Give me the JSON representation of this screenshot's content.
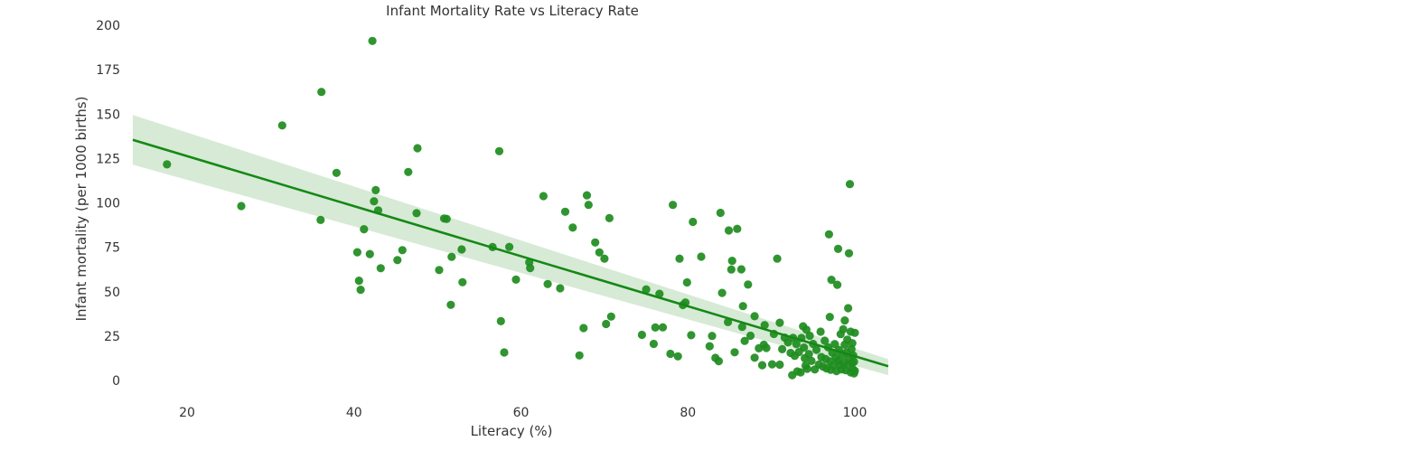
{
  "chart_data": {
    "type": "scatter",
    "title": "Infant Mortality Rate vs Literacy Rate",
    "xlabel": "Literacy (%)",
    "ylabel": "Infant mortality (per 1000 births)",
    "xlim": [
      13.5,
      104
    ],
    "ylim": [
      -9,
      201
    ],
    "xticks": [
      20,
      40,
      60,
      80,
      100
    ],
    "yticks": [
      0,
      25,
      50,
      75,
      100,
      125,
      150,
      175,
      200
    ],
    "grid": false,
    "legend": "none",
    "colors": {
      "points": "#1e8c1e",
      "line": "#158815",
      "band": "#cfe6cf"
    },
    "regression": {
      "x": [
        13.5,
        104
      ],
      "y": [
        135.5,
        8
      ],
      "ci_upper": [
        149.5,
        12
      ],
      "ci_lower": [
        121.5,
        3
      ]
    },
    "points": [
      [
        17.6,
        121.7
      ],
      [
        26.5,
        98.2
      ],
      [
        31.4,
        143.6
      ],
      [
        36.0,
        90.4
      ],
      [
        36.1,
        162.5
      ],
      [
        37.9,
        116.9
      ],
      [
        40.4,
        72.2
      ],
      [
        40.6,
        56.2
      ],
      [
        40.8,
        51.1
      ],
      [
        41.2,
        85.2
      ],
      [
        41.9,
        71.2
      ],
      [
        42.2,
        191.2
      ],
      [
        42.4,
        100.9
      ],
      [
        42.6,
        107.2
      ],
      [
        42.9,
        95.8
      ],
      [
        43.2,
        63.2
      ],
      [
        45.2,
        67.8
      ],
      [
        45.8,
        73.4
      ],
      [
        46.5,
        117.4
      ],
      [
        47.5,
        94.2
      ],
      [
        47.6,
        130.8
      ],
      [
        50.2,
        62.2
      ],
      [
        50.8,
        91.2
      ],
      [
        51.1,
        91.0
      ],
      [
        51.6,
        42.6
      ],
      [
        51.7,
        69.6
      ],
      [
        52.9,
        73.8
      ],
      [
        53.0,
        55.3
      ],
      [
        56.6,
        75.1
      ],
      [
        57.4,
        129.1
      ],
      [
        57.6,
        33.4
      ],
      [
        58.0,
        15.8
      ],
      [
        58.6,
        75.2
      ],
      [
        59.4,
        56.8
      ],
      [
        61.0,
        66.5
      ],
      [
        61.1,
        63.3
      ],
      [
        62.7,
        103.8
      ],
      [
        63.2,
        54.3
      ],
      [
        64.7,
        51.9
      ],
      [
        65.3,
        95.0
      ],
      [
        66.2,
        86.1
      ],
      [
        67.0,
        14.1
      ],
      [
        67.5,
        29.5
      ],
      [
        67.9,
        104.3
      ],
      [
        68.1,
        98.9
      ],
      [
        68.9,
        77.7
      ],
      [
        69.4,
        72.1
      ],
      [
        70.0,
        68.6
      ],
      [
        70.2,
        31.8
      ],
      [
        70.6,
        91.4
      ],
      [
        70.8,
        36.0
      ],
      [
        74.5,
        25.7
      ],
      [
        75.0,
        51.3
      ],
      [
        75.9,
        20.6
      ],
      [
        76.1,
        29.8
      ],
      [
        76.6,
        48.8
      ],
      [
        77.0,
        29.9
      ],
      [
        77.9,
        15.0
      ],
      [
        78.2,
        98.9
      ],
      [
        78.8,
        13.6
      ],
      [
        79.0,
        68.6
      ],
      [
        79.4,
        42.5
      ],
      [
        79.7,
        43.9
      ],
      [
        79.9,
        55.2
      ],
      [
        80.4,
        25.5
      ],
      [
        80.6,
        89.3
      ],
      [
        81.6,
        69.7
      ],
      [
        82.6,
        19.3
      ],
      [
        82.9,
        25.1
      ],
      [
        83.3,
        12.7
      ],
      [
        83.7,
        10.9
      ],
      [
        83.9,
        94.4
      ],
      [
        84.1,
        49.3
      ],
      [
        84.8,
        32.9
      ],
      [
        84.9,
        84.5
      ],
      [
        85.2,
        62.5
      ],
      [
        85.3,
        67.4
      ],
      [
        85.6,
        15.9
      ],
      [
        85.9,
        85.4
      ],
      [
        86.4,
        62.6
      ],
      [
        86.5,
        30.2
      ],
      [
        86.6,
        41.9
      ],
      [
        86.8,
        22.3
      ],
      [
        87.2,
        54.0
      ],
      [
        87.5,
        25.2
      ],
      [
        88.0,
        36.2
      ],
      [
        88.0,
        12.8
      ],
      [
        88.5,
        18.1
      ],
      [
        88.9,
        8.6
      ],
      [
        89.1,
        20.1
      ],
      [
        89.2,
        31.2
      ],
      [
        89.4,
        18.3
      ],
      [
        90.1,
        9.1
      ],
      [
        90.3,
        26.2
      ],
      [
        90.7,
        68.6
      ],
      [
        91.0,
        32.5
      ],
      [
        91.0,
        8.9
      ],
      [
        91.3,
        17.6
      ],
      [
        91.6,
        24.1
      ],
      [
        92.0,
        21.5
      ],
      [
        92.3,
        15.5
      ],
      [
        92.5,
        3.0
      ],
      [
        92.6,
        24.0
      ],
      [
        92.8,
        13.9
      ],
      [
        93.0,
        20.5
      ],
      [
        93.1,
        5.1
      ],
      [
        93.3,
        16.0
      ],
      [
        93.5,
        4.6
      ],
      [
        93.6,
        23.9
      ],
      [
        93.8,
        30.5
      ],
      [
        93.9,
        18.5
      ],
      [
        94.0,
        12.5
      ],
      [
        94.1,
        8.4
      ],
      [
        94.2,
        28.6
      ],
      [
        94.3,
        6.6
      ],
      [
        94.5,
        14.8
      ],
      [
        94.6,
        25.2
      ],
      [
        94.8,
        11.0
      ],
      [
        95.0,
        20.6
      ],
      [
        95.2,
        6.2
      ],
      [
        95.4,
        17.3
      ],
      [
        95.7,
        9.0
      ],
      [
        95.9,
        27.5
      ],
      [
        96.0,
        13.2
      ],
      [
        96.2,
        7.8
      ],
      [
        96.4,
        22.4
      ],
      [
        96.5,
        12.1
      ],
      [
        96.6,
        6.8
      ],
      [
        96.8,
        18.7
      ],
      [
        96.9,
        82.3
      ],
      [
        97.0,
        35.8
      ],
      [
        97.0,
        10.8
      ],
      [
        97.1,
        6.0
      ],
      [
        97.2,
        56.7
      ],
      [
        97.3,
        15.6
      ],
      [
        97.4,
        8.5
      ],
      [
        97.6,
        20.5
      ],
      [
        97.7,
        13.0
      ],
      [
        97.8,
        5.3
      ],
      [
        97.9,
        53.9
      ],
      [
        98.0,
        74.1
      ],
      [
        98.0,
        11.0
      ],
      [
        98.1,
        17.2
      ],
      [
        98.2,
        8.7
      ],
      [
        98.3,
        26.1
      ],
      [
        98.4,
        6.2
      ],
      [
        98.5,
        14.4
      ],
      [
        98.6,
        28.8
      ],
      [
        98.7,
        10.1
      ],
      [
        98.8,
        20.2
      ],
      [
        98.8,
        33.8
      ],
      [
        98.9,
        5.8
      ],
      [
        99.0,
        15.9
      ],
      [
        99.1,
        23.0
      ],
      [
        99.2,
        8.9
      ],
      [
        99.2,
        40.7
      ],
      [
        99.3,
        71.6
      ],
      [
        99.3,
        12.2
      ],
      [
        99.4,
        110.6
      ],
      [
        99.5,
        4.6
      ],
      [
        99.5,
        27.5
      ],
      [
        99.6,
        17.7
      ],
      [
        99.7,
        9.7
      ],
      [
        99.7,
        21.0
      ],
      [
        99.8,
        6.1
      ],
      [
        99.8,
        14.1
      ],
      [
        99.9,
        4.0
      ],
      [
        99.9,
        10.6
      ],
      [
        100.0,
        26.8
      ],
      [
        100.0,
        5.4
      ]
    ]
  }
}
